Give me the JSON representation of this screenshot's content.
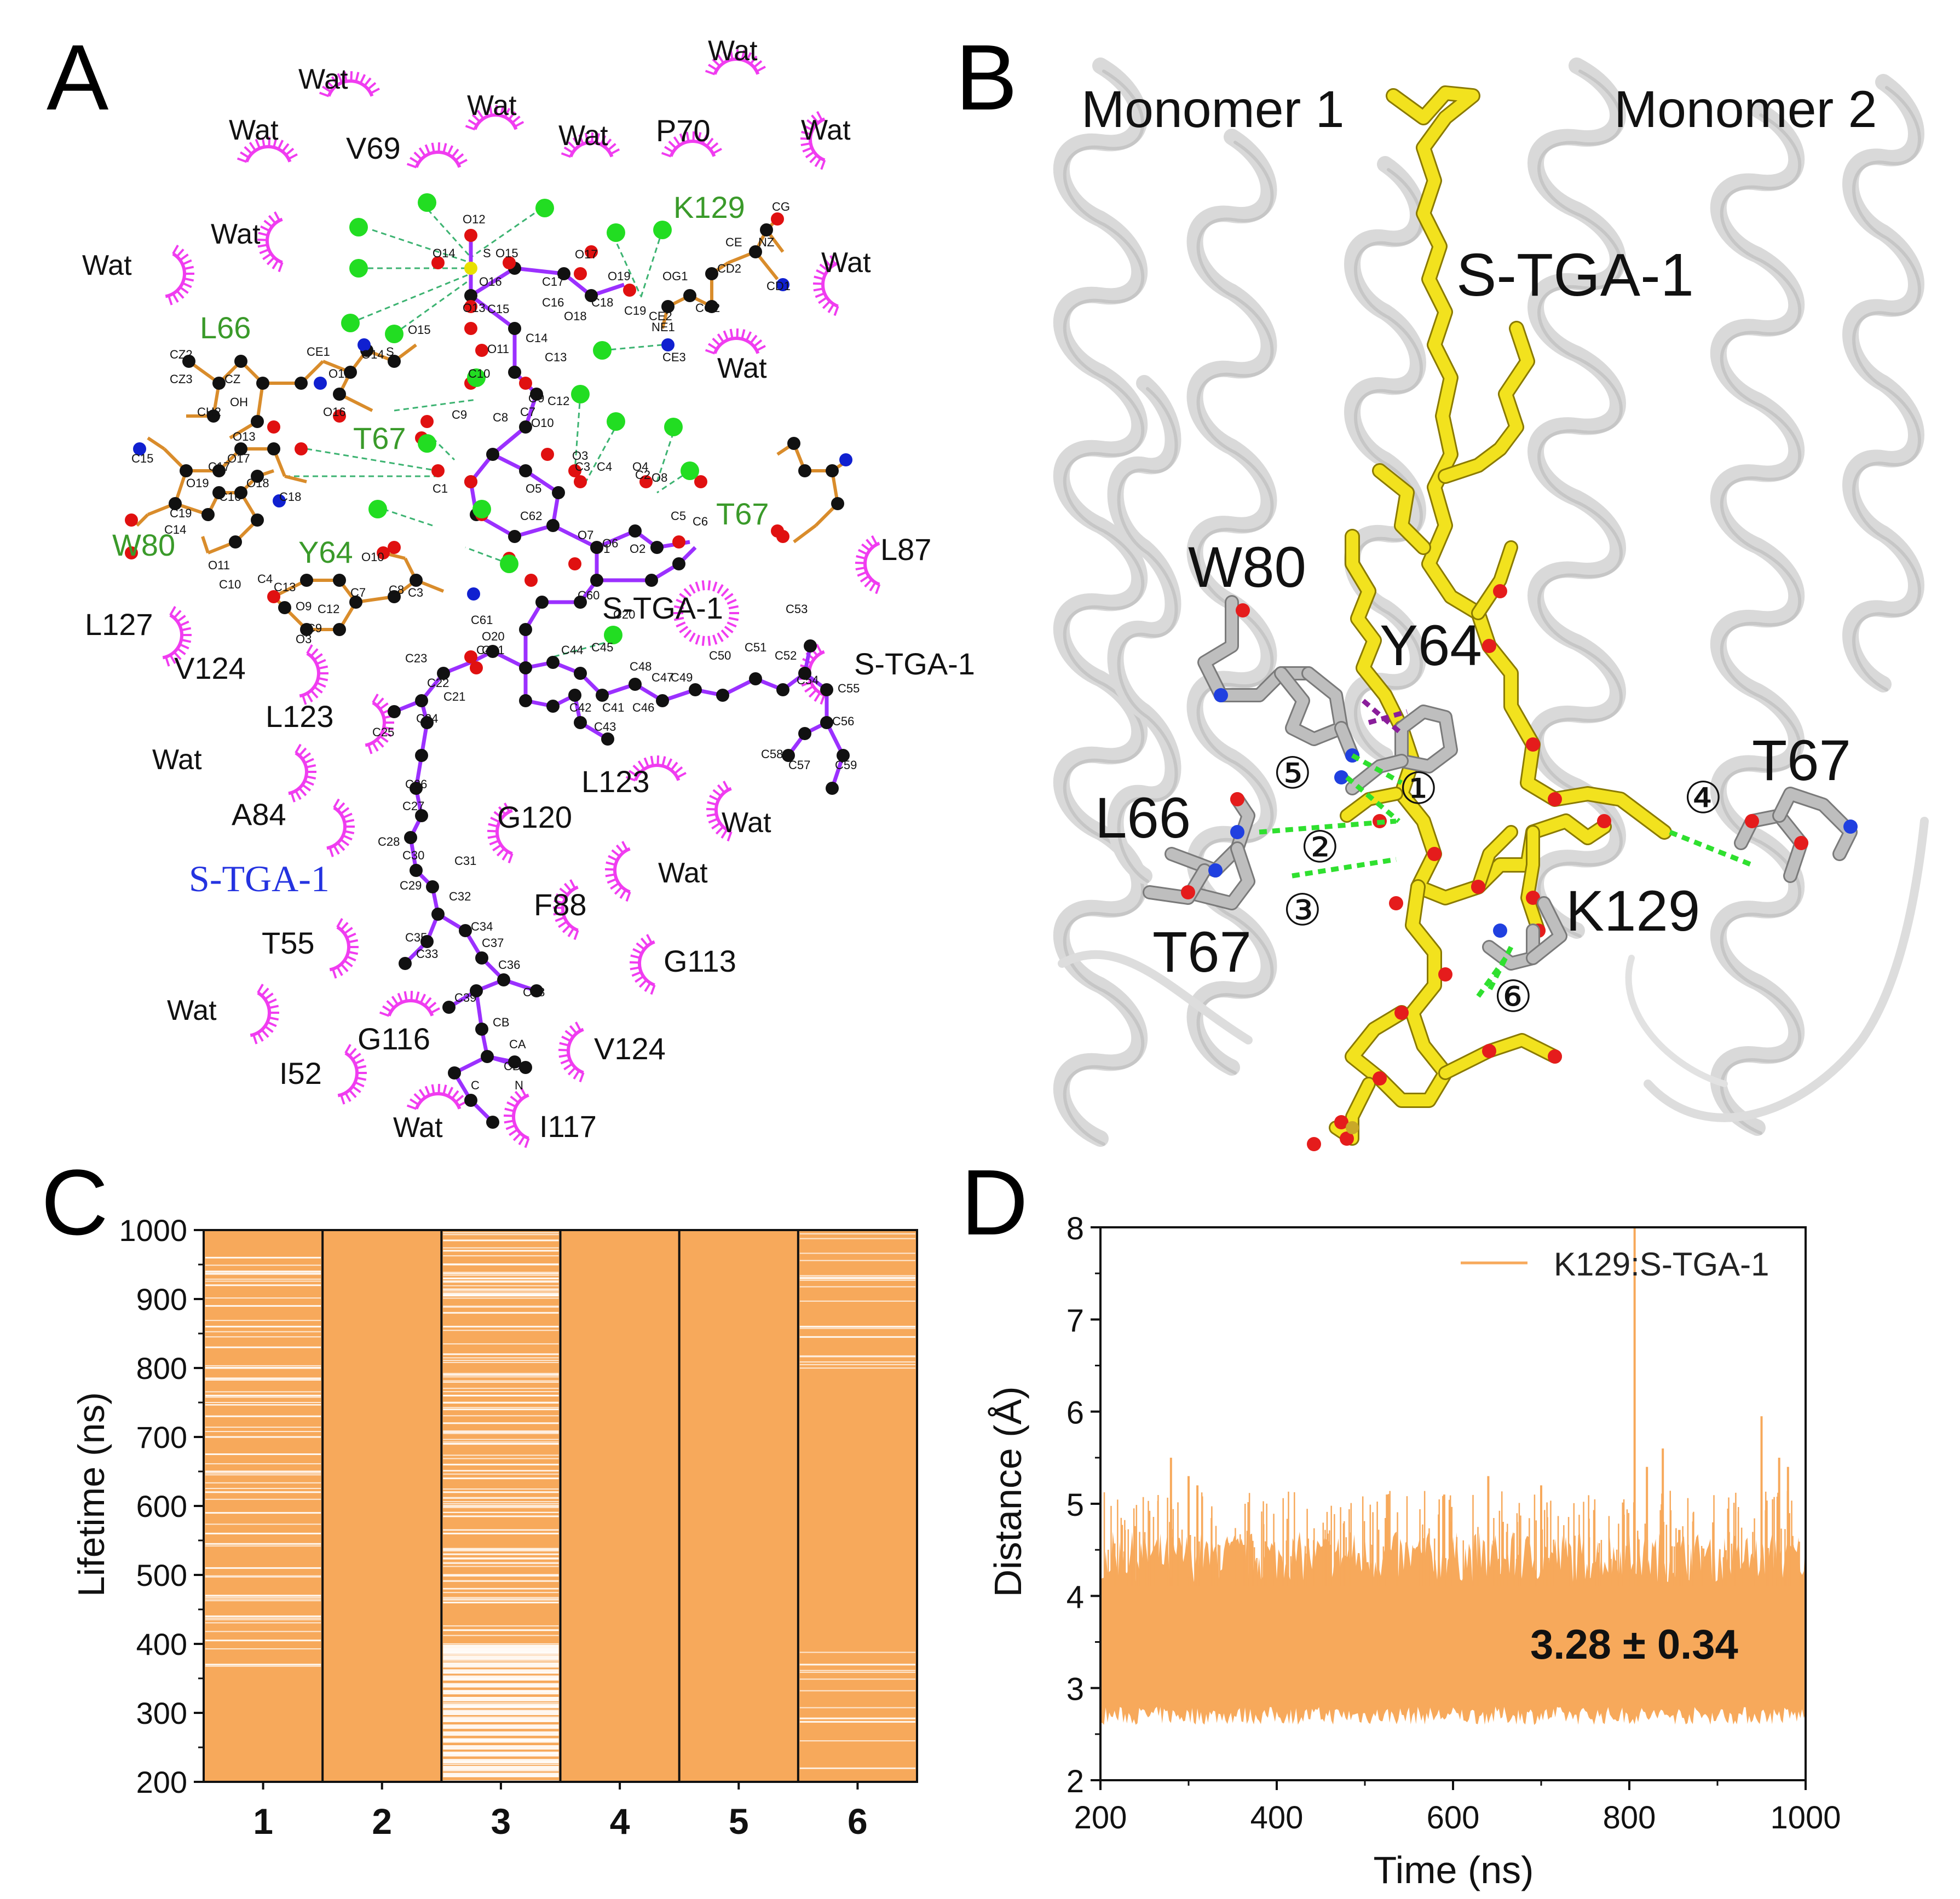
{
  "panels": {
    "a": {
      "letter": "A"
    },
    "b": {
      "letter": "B"
    },
    "c": {
      "letter": "C"
    },
    "d": {
      "letter": "D"
    }
  },
  "panel_a": {
    "residue_labels_green": [
      "L66",
      "T67",
      "W80",
      "Y64",
      "K129",
      "T67"
    ],
    "residue_labels_black": [
      "V69",
      "P70",
      "L87",
      "L127",
      "V124",
      "L123",
      "S-TGA-1",
      "S-TGA-1",
      "A84",
      "G120",
      "L123",
      "T55",
      "F88",
      "G113",
      "G116",
      "I52",
      "V124",
      "I117"
    ],
    "water_label": "Wat",
    "ligand_label": "S-TGA-1",
    "atom_labels": [
      "O12",
      "O14",
      "S",
      "O15",
      "O16",
      "O13",
      "C15",
      "C17",
      "O17",
      "O19",
      "C16",
      "C18",
      "O18",
      "C19",
      "C14",
      "O11",
      "C13",
      "C10",
      "O9",
      "C12",
      "C9",
      "C7",
      "C8",
      "O10",
      "O3",
      "C3",
      "C4",
      "O4",
      "C2",
      "O6",
      "C5",
      "C6",
      "O8",
      "O7",
      "O2",
      "C1",
      "O5",
      "O1",
      "C62",
      "C60",
      "C61",
      "O20",
      "O21",
      "C20",
      "C44",
      "C45",
      "C41",
      "C42",
      "C43",
      "C46",
      "C47",
      "C48",
      "C49",
      "C50",
      "C51",
      "C52",
      "C53",
      "C54",
      "C55",
      "C56",
      "C57",
      "C58",
      "C59",
      "C40",
      "C23",
      "C22",
      "C21",
      "C24",
      "C25",
      "C26",
      "C27",
      "C28",
      "C29",
      "C30",
      "C31",
      "C32",
      "C33",
      "C34",
      "C35",
      "C36",
      "C37",
      "C38",
      "C39",
      "CB",
      "CA",
      "C",
      "N",
      "O",
      "CD",
      "CE",
      "NZ",
      "CG",
      "CD1",
      "CD2",
      "OG1",
      "CG2",
      "NE1",
      "CE2",
      "CE3",
      "CZ2",
      "CZ3",
      "CH2",
      "CZ",
      "OH",
      "CE1"
    ]
  },
  "panel_b": {
    "monomer1": "Monomer 1",
    "monomer2": "Monomer 2",
    "ligand": "S-TGA-1",
    "residues": [
      "W80",
      "Y64",
      "L66",
      "T67",
      "T67",
      "K129"
    ],
    "bond_numbers": [
      "①",
      "②",
      "③",
      "④",
      "⑤",
      "⑥"
    ]
  },
  "panel_c": {
    "chart_data": {
      "type": "heatmap",
      "ylabel": "Lifetime (ns)",
      "ylim": [
        200,
        1000
      ],
      "yticks": [
        "200",
        "300",
        "400",
        "500",
        "600",
        "700",
        "800",
        "900",
        "1000"
      ],
      "categories": [
        "1",
        "2",
        "3",
        "4",
        "5",
        "6"
      ],
      "color": "#F7A95B",
      "gap_color": "#FFFFFF",
      "series": [
        {
          "name": "1",
          "occupancy": "high",
          "gaps_ns": [
            370,
            405,
            440,
            470,
            510,
            545,
            560,
            590,
            620,
            650,
            675,
            700,
            730,
            760,
            785,
            800,
            830,
            860,
            890,
            920,
            940,
            960
          ]
        },
        {
          "name": "2",
          "occupancy": "continuous",
          "gaps_ns": []
        },
        {
          "name": "3",
          "occupancy": "intermittent",
          "gaps_ns": [
            210,
            220,
            230,
            240,
            250,
            260,
            270,
            280,
            290,
            300,
            310,
            320,
            330,
            340,
            350,
            360,
            370,
            380,
            390,
            395,
            420,
            460,
            500,
            530,
            560,
            585,
            600,
            620,
            640,
            660,
            690,
            720,
            740,
            760,
            790,
            820,
            860,
            880,
            905,
            930,
            950,
            970,
            985
          ]
        },
        {
          "name": "4",
          "occupancy": "continuous",
          "gaps_ns": []
        },
        {
          "name": "5",
          "occupancy": "continuous",
          "gaps_ns": []
        },
        {
          "name": "6",
          "occupancy": "high",
          "gaps_ns": [
            287,
            292,
            370,
            845,
            860,
            930
          ]
        }
      ]
    }
  },
  "panel_d": {
    "chart_data": {
      "type": "line",
      "title": "",
      "xlabel": "Time (ns)",
      "ylabel": "Distance (Å)",
      "xlim": [
        200,
        1000
      ],
      "ylim": [
        2,
        8
      ],
      "xticks": [
        "200",
        "400",
        "600",
        "800",
        "1000"
      ],
      "yticks": [
        "2",
        "3",
        "4",
        "5",
        "6",
        "7",
        "8"
      ],
      "series": [
        {
          "name": "K129:S-TGA-1",
          "color": "#F7A95B",
          "band_lower": 2.7,
          "band_upper": 4.4,
          "peaks": [
            [
              280,
              5.5
            ],
            [
              300,
              5.3
            ],
            [
              310,
              5.2
            ],
            [
              525,
              5.1
            ],
            [
              590,
              5.1
            ],
            [
              640,
              5.3
            ],
            [
              700,
              5.2
            ],
            [
              806,
              8.0
            ],
            [
              820,
              5.4
            ],
            [
              838,
              5.6
            ],
            [
              950,
              5.95
            ],
            [
              970,
              5.5
            ],
            [
              980,
              5.4
            ]
          ]
        }
      ],
      "annotation": "3.28 ± 0.34"
    }
  }
}
